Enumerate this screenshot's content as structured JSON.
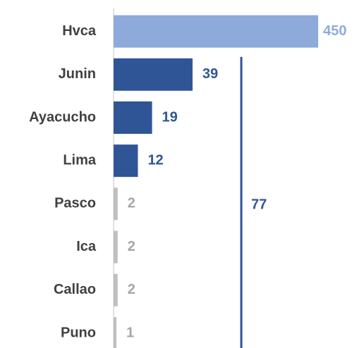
{
  "chart_data": {
    "type": "bar",
    "orientation": "horizontal",
    "categories": [
      "Hvca",
      "Junin",
      "Ayacucho",
      "Lima",
      "Pasco",
      "Ica",
      "Callao",
      "Puno"
    ],
    "values": [
      450,
      39,
      19,
      12,
      2,
      2,
      2,
      1
    ],
    "colors": [
      "#8eaadb",
      "#2f5597",
      "#2f5597",
      "#2f5597",
      "#bfbfbf",
      "#bfbfbf",
      "#bfbfbf",
      "#bfbfbf"
    ],
    "label_colors": [
      "#8eaadb",
      "#2f5597",
      "#2f5597",
      "#2f5597",
      "#a6a6a6",
      "#a6a6a6",
      "#a6a6a6",
      "#a6a6a6"
    ],
    "annotation": {
      "value": 77,
      "color": "#2f5597"
    }
  }
}
